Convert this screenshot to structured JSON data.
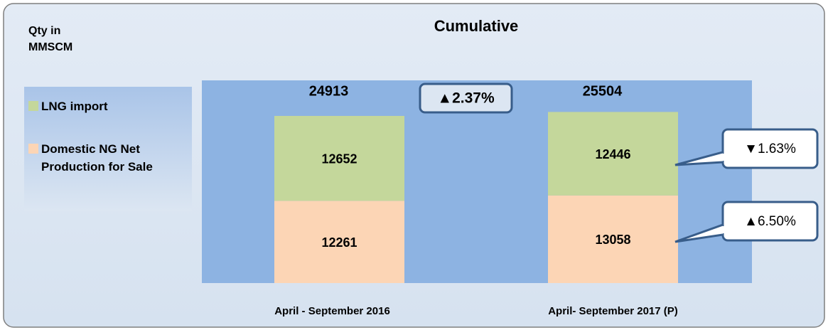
{
  "chart_data": {
    "type": "stacked_bar",
    "title": "Cumulative",
    "y_label": "Qty in MMSCM",
    "categories": [
      "April - September 2016",
      "April- September 2017 (P)"
    ],
    "series": [
      {
        "name": "LNG import",
        "color": "#c4d79b",
        "values": [
          12652,
          12446
        ]
      },
      {
        "name": "Domestic NG Net Production for Sale",
        "color": "#fcd5b5",
        "values": [
          12261,
          13058
        ]
      }
    ],
    "totals": [
      24913,
      25504
    ],
    "annotations": [
      "▲2.37%",
      "▼1.63%",
      "▲6.50%"
    ],
    "ylim": [
      0,
      30000
    ],
    "plot_color": "#8db3e2"
  }
}
